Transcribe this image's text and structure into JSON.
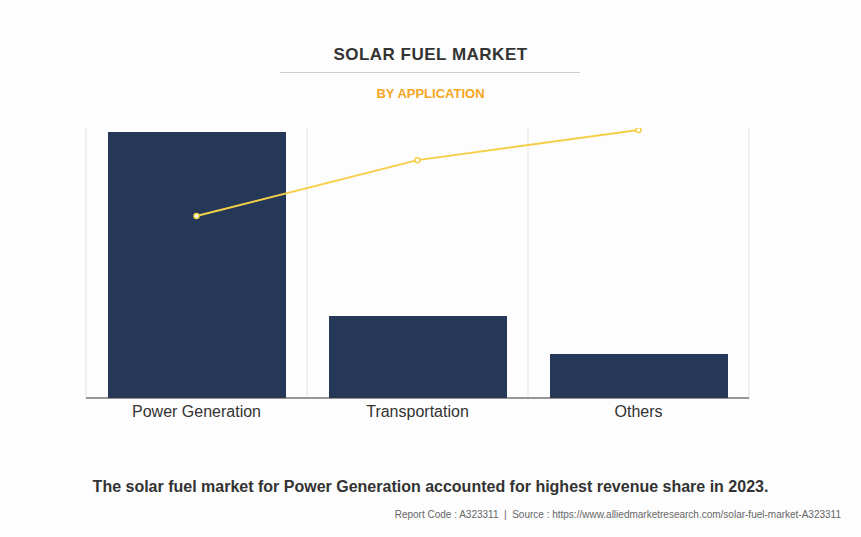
{
  "chart_data": {
    "type": "bar",
    "title": "SOLAR FUEL MARKET",
    "subtitle": "BY APPLICATION",
    "caption": "The solar fuel market for Power Generation accounted for highest revenue share in 2023.",
    "source": "Report Code : A323311  |  Source : https://www.alliedmarketresearch.com/solar-fuel-market-A323311",
    "categories": [
      "Power Generation",
      "Transportation",
      "Others"
    ],
    "series": [
      {
        "type": "bar",
        "color": "#253858",
        "values": [
          98.5,
          30.4,
          16.3
        ]
      },
      {
        "type": "line",
        "color": "#f5cf47",
        "marker": "circle",
        "values": [
          67.4,
          88.1,
          99.3
        ]
      }
    ],
    "ylim": [
      0,
      100
    ],
    "grid": true,
    "tick_labels": "x"
  }
}
